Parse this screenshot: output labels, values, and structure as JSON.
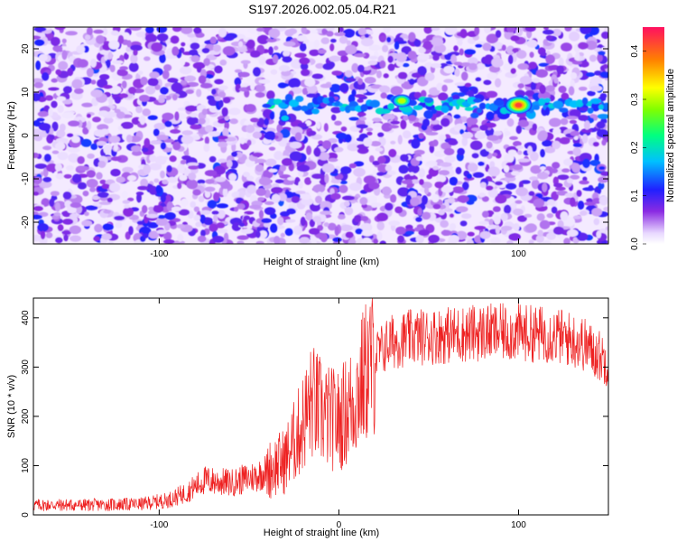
{
  "title": "S197.2026.002.05.04.R21",
  "chart_data": [
    {
      "type": "heatmap",
      "xlabel": "Height of straight line (km)",
      "ylabel": "Frequency (Hz)",
      "xlim": [
        -170,
        150
      ],
      "ylim": [
        -25,
        25
      ],
      "xticks": [
        -100,
        0,
        100
      ],
      "yticks": [
        -20,
        -10,
        0,
        10,
        20
      ],
      "colorbar": {
        "label": "Normalized spectral amplitude",
        "range": [
          0.0,
          0.45
        ],
        "ticks": [
          0.0,
          0.1,
          0.2,
          0.3,
          0.4
        ],
        "tick_labels": [
          "0.0",
          "0.1",
          "0.2",
          "0.3",
          "0.4"
        ]
      },
      "features": {
        "band_frequency_hz": 7,
        "band_start_km": -40,
        "hotspots": [
          {
            "x_km": -30,
            "freq_hz": 4,
            "amplitude": 0.22
          },
          {
            "x_km": 35,
            "freq_hz": 8,
            "amplitude": 0.32
          },
          {
            "x_km": 100,
            "freq_hz": 7,
            "amplitude": 0.42
          }
        ]
      }
    },
    {
      "type": "line",
      "xlabel": "Height of straight line (km)",
      "ylabel": "SNR (10 * v/v)",
      "xlim": [
        -170,
        150
      ],
      "ylim": [
        0,
        440
      ],
      "xticks": [
        -100,
        0,
        100
      ],
      "yticks": [
        0,
        100,
        200,
        300,
        400
      ],
      "series": [
        {
          "name": "SNR",
          "color": "#ee2222",
          "x": [
            -170,
            -140,
            -110,
            -95,
            -85,
            -75,
            -60,
            -45,
            -30,
            -22,
            -15,
            -8,
            0,
            8,
            15,
            20,
            28,
            40,
            60,
            80,
            100,
            120,
            135,
            150
          ],
          "y": [
            20,
            20,
            22,
            30,
            45,
            70,
            65,
            80,
            110,
            170,
            230,
            200,
            190,
            230,
            290,
            320,
            350,
            360,
            365,
            370,
            370,
            365,
            350,
            310
          ]
        }
      ]
    }
  ]
}
